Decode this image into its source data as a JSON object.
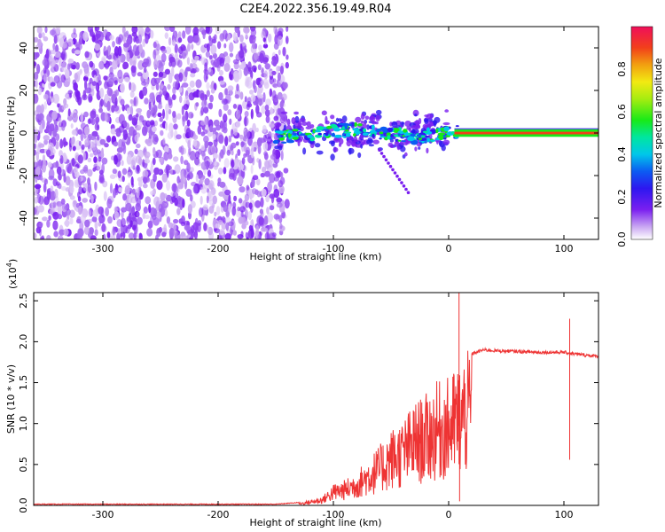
{
  "title": "C2E4.2022.356.19.49.R04",
  "chart_data": [
    {
      "type": "heatmap",
      "name": "spectrogram",
      "xlabel": "Height of straight line (km)",
      "ylabel": "Frequency (Hz)",
      "xlim": [
        -360,
        130
      ],
      "ylim": [
        -50,
        50
      ],
      "xticks": [
        -300,
        -200,
        -100,
        0,
        100
      ],
      "yticks": [
        -40,
        -20,
        0,
        20,
        40
      ],
      "colorbar": {
        "label": "Normalized spectral amplitude",
        "range": [
          0.0,
          1.0
        ],
        "ticks": [
          0.0,
          0.2,
          0.4,
          0.6,
          0.8
        ]
      },
      "features": {
        "noise_region_x": [
          -360,
          -140
        ],
        "signal_band_x": [
          -150,
          130
        ],
        "signal_center_hz": 0,
        "streak_x": [
          -45,
          -40
        ],
        "streak_y": [
          -10,
          -25
        ]
      }
    },
    {
      "type": "line",
      "name": "snr",
      "xlabel": "Height of straight line (km)",
      "ylabel": "SNR (10 * v/v)",
      "y_multiplier": "(x10",
      "y_multiplier_exp": "4",
      "y_multiplier_close": ")",
      "xlim": [
        -360,
        130
      ],
      "ylim": [
        0,
        2.6
      ],
      "xticks": [
        -300,
        -200,
        -100,
        0,
        100
      ],
      "yticks": [
        0.0,
        0.5,
        1.0,
        1.5,
        2.0,
        2.5
      ],
      "ytick_labels": [
        "0.0",
        "0.5",
        "1.0",
        "1.5",
        "2.0",
        "2.5"
      ],
      "color": "#ee3333",
      "envelope": {
        "x": [
          -360,
          -150,
          -130,
          -110,
          -100,
          -90,
          -80,
          -70,
          -60,
          -50,
          -40,
          -30,
          -20,
          -10,
          0,
          10,
          20,
          30,
          40,
          60,
          80,
          100,
          110,
          130
        ],
        "y": [
          0.01,
          0.01,
          0.03,
          0.1,
          0.25,
          0.3,
          0.4,
          0.55,
          0.7,
          0.9,
          1.0,
          1.2,
          1.3,
          1.45,
          1.5,
          1.7,
          1.85,
          1.9,
          1.89,
          1.88,
          1.87,
          1.87,
          1.85,
          1.82
        ]
      },
      "spikes": [
        {
          "x": 9,
          "y": 2.6
        },
        {
          "x": 105,
          "y": 2.28
        }
      ]
    }
  ]
}
